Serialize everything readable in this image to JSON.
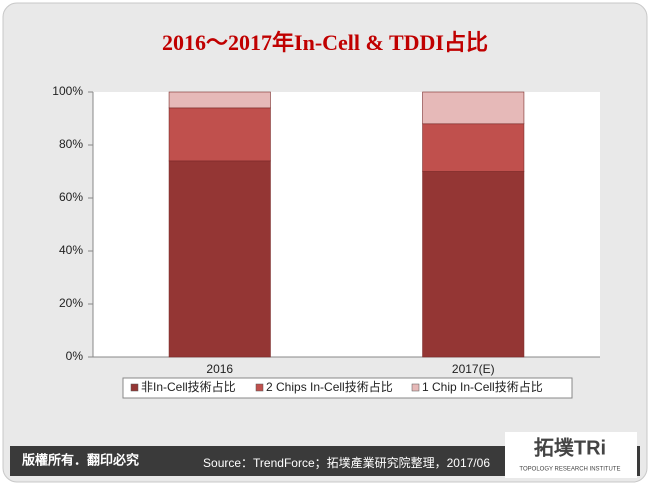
{
  "chart_data": {
    "type": "stacked-bar",
    "title": "2016～2017年In-Cell & TDDI占比",
    "categories": [
      "2016",
      "2017(E)"
    ],
    "series": [
      {
        "name": "非In-Cell技術占比",
        "color": "#943634",
        "values": [
          74,
          70
        ]
      },
      {
        "name": "2 Chips In-Cell技術占比",
        "color": "#c0504d",
        "values": [
          20,
          18
        ]
      },
      {
        "name": "1 Chip In-Cell技術占比",
        "color": "#e6b9b8",
        "values": [
          6,
          12
        ]
      }
    ],
    "ylim": [
      0,
      100
    ],
    "yticks": [
      {
        "value": 0,
        "label": "0%"
      },
      {
        "value": 20,
        "label": "20%"
      },
      {
        "value": 40,
        "label": "40%"
      },
      {
        "value": 60,
        "label": "60%"
      },
      {
        "value": 80,
        "label": "80%"
      },
      {
        "value": 100,
        "label": "100%"
      }
    ],
    "legend": "bottom"
  },
  "footer": {
    "copyright": "版權所有．翻印必究",
    "source": "Source：TrendForce；拓墣產業研究院整理，2017/06",
    "logo": "拓墣TRi",
    "logo_subtitle": "TOPOLOGY RESEARCH INSTITUTE"
  }
}
